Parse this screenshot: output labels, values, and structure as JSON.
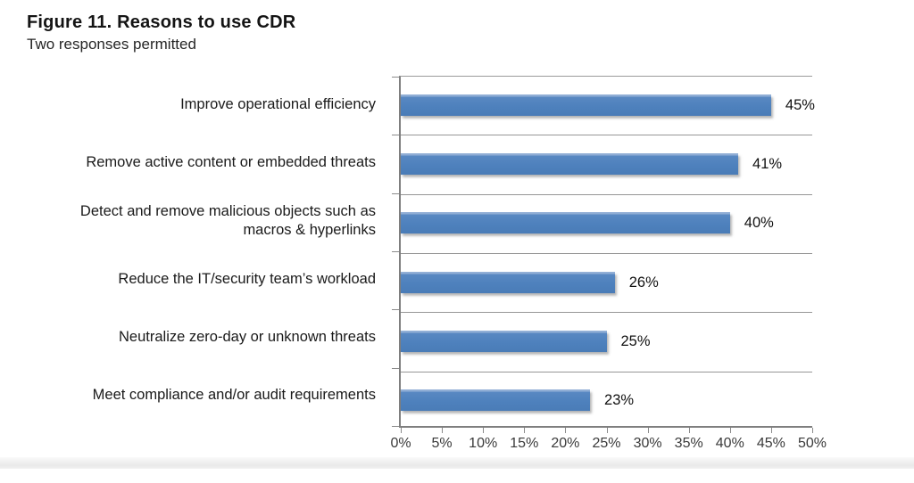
{
  "figure": {
    "title": "Figure 11. Reasons to use CDR",
    "subtitle": "Two responses permitted"
  },
  "chart_data": {
    "type": "bar",
    "orientation": "horizontal",
    "title": "Figure 11. Reasons to use CDR",
    "subtitle": "Two responses permitted",
    "categories": [
      "Improve operational efficiency",
      "Remove active content or embedded threats",
      "Detect and remove malicious objects such as macros & hyperlinks",
      "Reduce the IT/security team’s workload",
      "Neutralize zero-day or unknown threats",
      "Meet compliance and/or audit requirements"
    ],
    "category_lines": [
      [
        "Improve operational efficiency"
      ],
      [
        "Remove active content or embedded threats"
      ],
      [
        "Detect and remove malicious objects such as",
        "macros & hyperlinks"
      ],
      [
        "Reduce the IT/security team’s workload"
      ],
      [
        "Neutralize zero-day or unknown threats"
      ],
      [
        "Meet compliance and/or audit requirements"
      ]
    ],
    "values": [
      45,
      41,
      40,
      26,
      25,
      23
    ],
    "value_labels": [
      "45%",
      "41%",
      "40%",
      "26%",
      "25%",
      "23%"
    ],
    "x_ticks": [
      "0%",
      "5%",
      "10%",
      "15%",
      "20%",
      "25%",
      "30%",
      "35%",
      "40%",
      "45%",
      "50%"
    ],
    "xlim": [
      0,
      50
    ],
    "xlabel": "",
    "ylabel": "",
    "legend": "none",
    "grid": "horizontal category separators",
    "bar_color": "#4e81bd",
    "bar_highlight_color": "#8fadd5",
    "gridline_color": "#969696",
    "axis_color": "#7f7f7f",
    "text_color": "#1a1a1a"
  }
}
